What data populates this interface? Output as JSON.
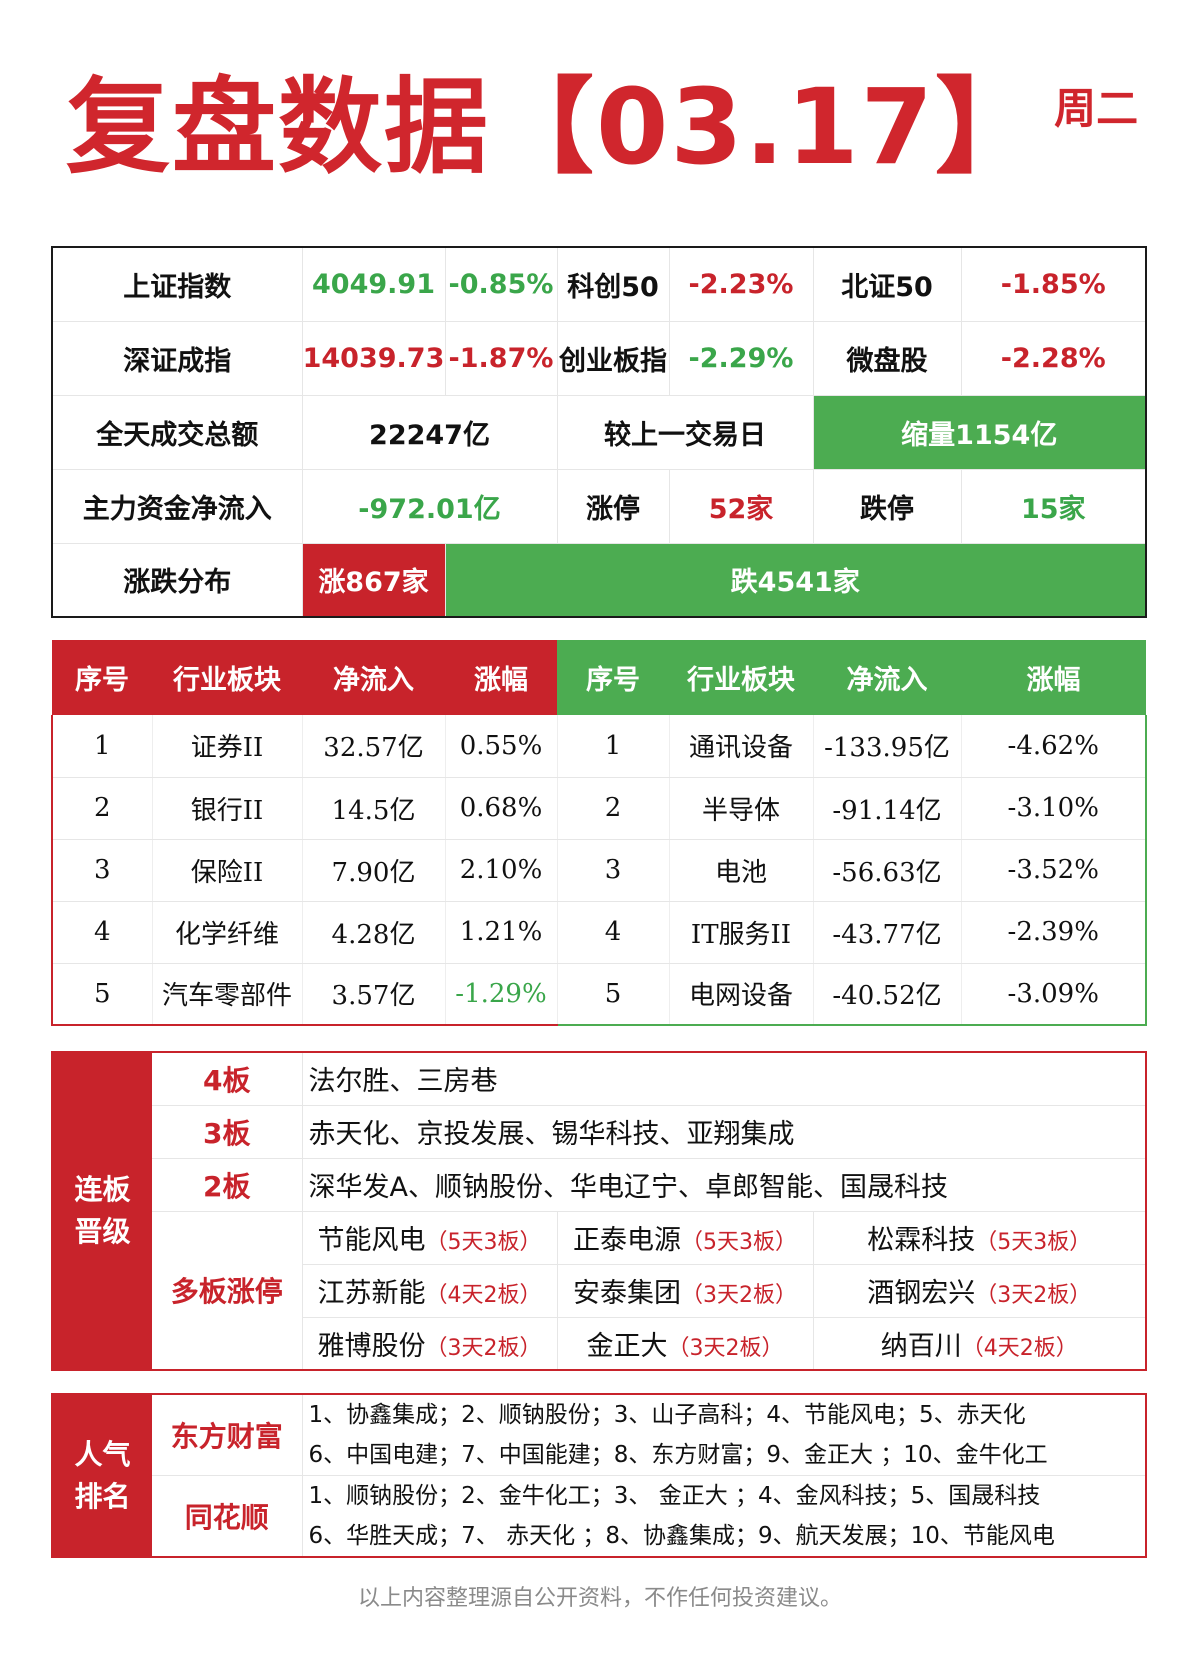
{
  "header": {
    "title": "复盘数据【03.17】",
    "weekday": "周二"
  },
  "summary": {
    "row1": {
      "label": "上证指数",
      "value": "4049.91",
      "change": "-0.85%",
      "label2": "科创50",
      "change2": "-2.23%",
      "label3": "北证50",
      "change3": "-1.85%"
    },
    "row2": {
      "label": "深证成指",
      "value": "14039.73",
      "change": "-1.87%",
      "label2": "创业板指",
      "change2": "-2.29%",
      "label3": "微盘股",
      "change3": "-2.28%"
    },
    "row3": {
      "label": "全天成交总额",
      "value": "22247亿",
      "label2": "较上一交易日",
      "value2": "缩量1154亿"
    },
    "row4": {
      "label": "主力资金净流入",
      "value": "-972.01亿",
      "label2": "涨停",
      "value2": "52家",
      "label3": "跌停",
      "value3": "15家"
    },
    "row5": {
      "label": "涨跌分布",
      "up": "涨867家",
      "down": "跌4541家"
    }
  },
  "sectors": {
    "headers": [
      "序号",
      "行业板块",
      "净流入",
      "涨幅"
    ],
    "inflow": [
      {
        "no": "1",
        "name": "证券II",
        "net": "32.57亿",
        "chg": "0.55%"
      },
      {
        "no": "2",
        "name": "银行II",
        "net": "14.5亿",
        "chg": "0.68%"
      },
      {
        "no": "3",
        "name": "保险II",
        "net": "7.90亿",
        "chg": "2.10%"
      },
      {
        "no": "4",
        "name": "化学纤维",
        "net": "4.28亿",
        "chg": "1.21%"
      },
      {
        "no": "5",
        "name": "汽车零部件",
        "net": "3.57亿",
        "chg": "-1.29%"
      }
    ],
    "outflow": [
      {
        "no": "1",
        "name": "通讯设备",
        "net": "-133.95亿",
        "chg": "-4.62%"
      },
      {
        "no": "2",
        "name": "半导体",
        "net": "-91.14亿",
        "chg": "-3.10%"
      },
      {
        "no": "3",
        "name": "电池",
        "net": "-56.63亿",
        "chg": "-3.52%"
      },
      {
        "no": "4",
        "name": "IT服务II",
        "net": "-43.77亿",
        "chg": "-2.39%"
      },
      {
        "no": "5",
        "name": "电网设备",
        "net": "-40.52亿",
        "chg": "-3.09%"
      }
    ]
  },
  "ladder": {
    "side_label": "连板晋级",
    "levels": [
      {
        "level": "4板",
        "stocks": "法尔胜、三房巷"
      },
      {
        "level": "3板",
        "stocks": "赤天化、京投发展、锡华科技、亚翔集成"
      },
      {
        "level": "2板",
        "stocks": "深华发A、顺钠股份、华电辽宁、卓郎智能、国晟科技"
      }
    ],
    "multi_label": "多板涨停",
    "multi": [
      [
        {
          "name": "节能风电",
          "note": "（5天3板）"
        },
        {
          "name": "正泰电源",
          "note": "（5天3板）"
        },
        {
          "name": "松霖科技",
          "note": "（5天3板）"
        }
      ],
      [
        {
          "name": "江苏新能",
          "note": "（4天2板）"
        },
        {
          "name": "安泰集团",
          "note": "（3天2板）"
        },
        {
          "name": "酒钢宏兴",
          "note": "（3天2板）"
        }
      ],
      [
        {
          "name": "雅博股份",
          "note": "（3天2板）"
        },
        {
          "name": "金正大",
          "note": "（3天2板）"
        },
        {
          "name": "纳百川",
          "note": "（4天2板）"
        }
      ]
    ]
  },
  "popular": {
    "side_label": "人气排名",
    "sources": [
      {
        "name": "东方财富",
        "line1": "1、协鑫集成；2、顺钠股份；3、山子高科；4、节能风电；5、赤天化",
        "line2": "6、中国电建；7、中国能建；8、东方财富；9、金正大 ；10、金牛化工"
      },
      {
        "name": "同花顺",
        "line1": "1、顺钠股份；2、金牛化工；3、 金正大 ；4、金风科技；5、国晟科技",
        "line2": "6、华胜天成；7、 赤天化 ；8、协鑫集成；9、航天发展；10、节能风电"
      }
    ]
  },
  "footer": "以上内容整理源自公开资料，不作任何投资建议。",
  "colors": {
    "up_red": "#c8232b",
    "down_green": "#4cac51",
    "text_green": "#3aa64a"
  }
}
